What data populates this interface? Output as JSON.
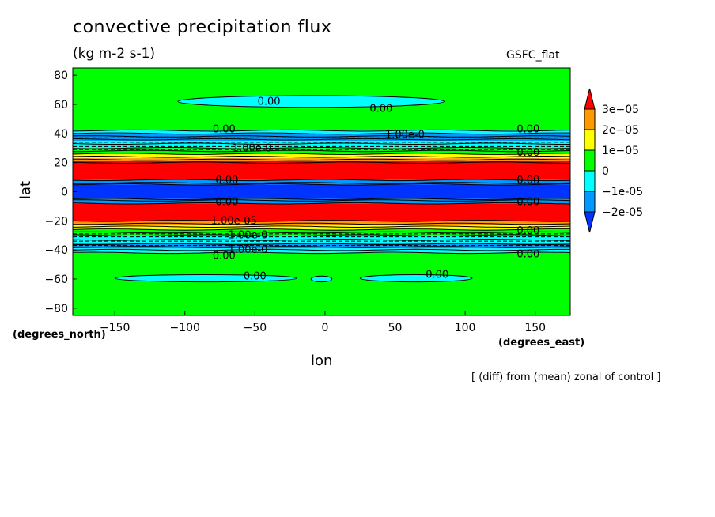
{
  "figure": {
    "title": "convective precipitation flux",
    "units": "(kg m-2 s-1)",
    "source": "GSFC_flat",
    "x_unit_label": "(degrees_east)",
    "y_unit_label": "(degrees_north)",
    "footnote": "[ (diff) from (mean) zonal of control ]"
  },
  "chart_data": {
    "type": "heatmap",
    "xlabel": "lon",
    "ylabel": "lat",
    "xlim": [
      -180,
      175
    ],
    "ylim": [
      -85,
      85
    ],
    "x_ticks": [
      -150,
      -100,
      -50,
      0,
      50,
      100,
      150
    ],
    "y_ticks": [
      -80,
      -60,
      -40,
      -20,
      0,
      20,
      40,
      60,
      80
    ],
    "colorbar": {
      "labels": [
        "3e-05",
        "2e-05",
        "1e-05",
        "0",
        "-1e-05",
        "-2e-05"
      ],
      "colors": [
        "#ff0000",
        "#ff9900",
        "#ffff00",
        "#00ff00",
        "#00ffff",
        "#0099ff",
        "#0033ff"
      ]
    },
    "zonal_bands": [
      {
        "lat_from": 42,
        "lat_to": 85,
        "color": "#00ff00"
      },
      {
        "lat_from": 40,
        "lat_to": 42,
        "color": "#00ffff"
      },
      {
        "lat_from": 35,
        "lat_to": 40,
        "color": "#0099ff"
      },
      {
        "lat_from": 30,
        "lat_to": 35,
        "color": "#00ffff"
      },
      {
        "lat_from": 26,
        "lat_to": 30,
        "color": "#00ff00"
      },
      {
        "lat_from": 23,
        "lat_to": 26,
        "color": "#ffff00"
      },
      {
        "lat_from": 21,
        "lat_to": 23,
        "color": "#ff9900"
      },
      {
        "lat_from": 8,
        "lat_to": 21,
        "color": "#ff0000"
      },
      {
        "lat_from": 5,
        "lat_to": 8,
        "color": "#0099ff"
      },
      {
        "lat_from": -5,
        "lat_to": 5,
        "color": "#0033ff"
      },
      {
        "lat_from": -8,
        "lat_to": -5,
        "color": "#0099ff"
      },
      {
        "lat_from": -20,
        "lat_to": -8,
        "color": "#ff0000"
      },
      {
        "lat_from": -23,
        "lat_to": -20,
        "color": "#ff9900"
      },
      {
        "lat_from": -26,
        "lat_to": -23,
        "color": "#ffff00"
      },
      {
        "lat_from": -30,
        "lat_to": -26,
        "color": "#00ff00"
      },
      {
        "lat_from": -35,
        "lat_to": -30,
        "color": "#00ffff"
      },
      {
        "lat_from": -39,
        "lat_to": -35,
        "color": "#0099ff"
      },
      {
        "lat_from": -42,
        "lat_to": -39,
        "color": "#00ffff"
      },
      {
        "lat_from": -85,
        "lat_to": -42,
        "color": "#00ff00"
      }
    ],
    "negative_patches": [
      {
        "lon_from": -105,
        "lon_to": 85,
        "lat_from": 58,
        "lat_to": 66,
        "color": "#00ffff"
      },
      {
        "lon_from": -150,
        "lon_to": -20,
        "lat_from": -62,
        "lat_to": -57,
        "color": "#00ffff"
      },
      {
        "lon_from": -10,
        "lon_to": 5,
        "lat_from": -62,
        "lat_to": -58,
        "color": "#00ffff"
      },
      {
        "lon_from": 25,
        "lon_to": 105,
        "lat_from": -62,
        "lat_to": -57,
        "color": "#00ffff"
      }
    ],
    "contour_lats": [
      42,
      40,
      38,
      36,
      33,
      30,
      28,
      26,
      24,
      22,
      20,
      8,
      6,
      5,
      -5,
      -6,
      -8,
      -20,
      -22,
      -24,
      -26,
      -28,
      -30,
      -33,
      -36,
      -38,
      -40,
      -42
    ],
    "dashed_lats": [
      37,
      34,
      31,
      29,
      -29,
      -31,
      -34,
      -37
    ],
    "contour_labels": [
      {
        "text": "0.00",
        "lon": -40,
        "lat": 62
      },
      {
        "text": "0.00",
        "lon": 40,
        "lat": 57
      },
      {
        "text": "0.00",
        "lon": -72,
        "lat": 43
      },
      {
        "text": "1.00e-0",
        "lon": 57,
        "lat": 39
      },
      {
        "text": "0.00",
        "lon": 145,
        "lat": 43
      },
      {
        "text": "1.00e-0",
        "lon": -52,
        "lat": 30
      },
      {
        "text": "0.00",
        "lon": 145,
        "lat": 27
      },
      {
        "text": "0.00",
        "lon": -70,
        "lat": 8
      },
      {
        "text": "0.00",
        "lon": 145,
        "lat": 8
      },
      {
        "text": "0.00",
        "lon": -70,
        "lat": -7
      },
      {
        "text": "0.00",
        "lon": 145,
        "lat": -7
      },
      {
        "text": "1.00e-05",
        "lon": -65,
        "lat": -20
      },
      {
        "text": "0.00",
        "lon": 145,
        "lat": -27
      },
      {
        "text": "1.00e-0",
        "lon": -55,
        "lat": -30
      },
      {
        "text": "1.00e-0",
        "lon": -55,
        "lat": -40
      },
      {
        "text": "0.00",
        "lon": -72,
        "lat": -44
      },
      {
        "text": "0.00",
        "lon": 145,
        "lat": -43
      },
      {
        "text": "0.00",
        "lon": -50,
        "lat": -58
      },
      {
        "text": "0.00",
        "lon": 80,
        "lat": -57
      }
    ]
  }
}
